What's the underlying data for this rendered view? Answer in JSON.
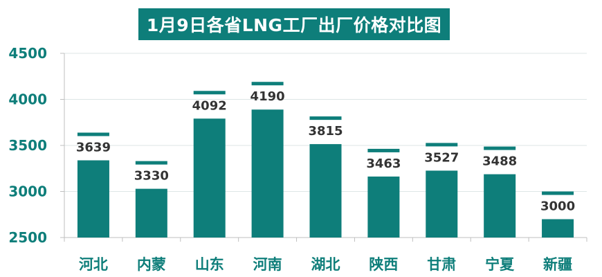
{
  "chart_data": {
    "type": "bar",
    "title": "1月9日各省LNG工厂出厂价格对比图",
    "categories": [
      "河北",
      "内蒙",
      "山东",
      "河南",
      "湖北",
      "陕西",
      "甘肃",
      "宁夏",
      "新疆"
    ],
    "values": [
      3639,
      3330,
      4092,
      4190,
      3815,
      3463,
      3527,
      3488,
      3000
    ],
    "ylim": [
      2500,
      4500
    ],
    "yticks": [
      2500,
      3000,
      3500,
      4000,
      4500
    ],
    "xlabel": "",
    "ylabel": "",
    "grid": true,
    "colors": {
      "bar": "#0e7e7a",
      "title_bg": "#0e7e7a",
      "axis_text": "#0e7e7a",
      "label_text": "#333333",
      "grid": "#dde6e6"
    }
  }
}
